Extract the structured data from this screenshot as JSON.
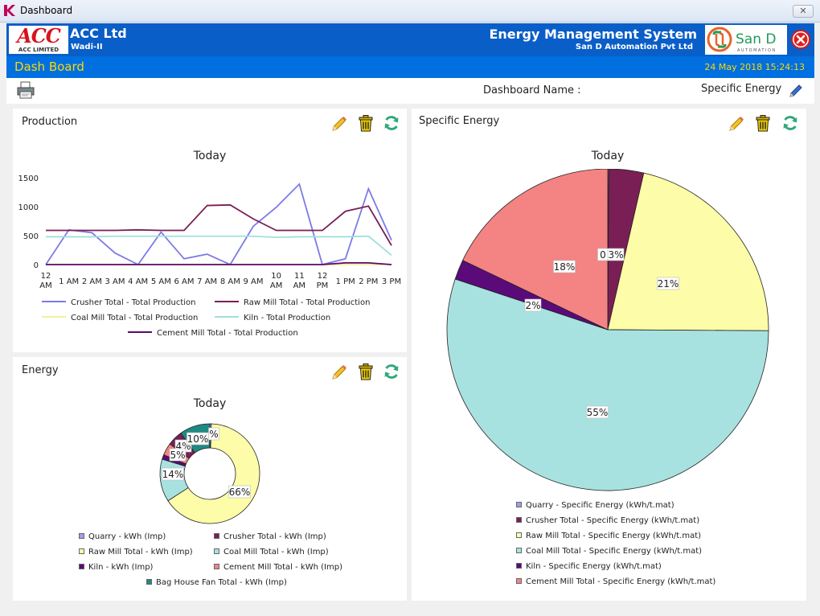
{
  "window": {
    "title": "Dashboard",
    "close_label": "✕"
  },
  "header": {
    "logo_text": "ACC",
    "logo_subtext": "ACC LIMITED",
    "company": "ACC Ltd",
    "site": "Wadi-II",
    "system_name": "Energy Management System",
    "vendor": "San D Automation Pvt Ltd",
    "vendor_logo_text": "San D",
    "vendor_logo_subtext": "AUTOMATION"
  },
  "subheader": {
    "name": "Dash Board",
    "datetime": "24 May 2018 15:24:13"
  },
  "toolbar": {
    "dashboard_label": "Dashboard Name :",
    "dashboard_value": "Specific Energy"
  },
  "colors": {
    "header_bg": "#0a5ec8",
    "subheader_bg": "#0070e0",
    "subheader_text": "#ffd800",
    "refresh": "#2fa87a",
    "trash": "#c8a400"
  },
  "panels": {
    "production": {
      "title": "Production",
      "chart_data": {
        "type": "line",
        "title": "Today",
        "categories": [
          "12 AM",
          "1 AM",
          "2 AM",
          "3 AM",
          "4 AM",
          "5 AM",
          "6 AM",
          "7 AM",
          "8 AM",
          "9 AM",
          "10 AM",
          "11 AM",
          "12 PM",
          "1 PM",
          "2 PM",
          "3 PM"
        ],
        "ylim": [
          0,
          1500
        ],
        "yticks": [
          "0",
          "500",
          "1000",
          "1500"
        ],
        "series": [
          {
            "name": "Crusher Total - Total Production",
            "color": "#7b7be6",
            "values": [
              0,
              600,
              550,
              200,
              0,
              560,
              100,
              180,
              0,
              660,
              990,
              1390,
              0,
              100,
              1310,
              420
            ]
          },
          {
            "name": "Raw Mill Total - Total Production",
            "color": "#7a1f55",
            "values": [
              590,
              590,
              590,
              590,
              600,
              590,
              590,
              1020,
              1030,
              790,
              590,
              590,
              590,
              920,
              1010,
              330
            ]
          },
          {
            "name": "Coal Mill Total - Total Production",
            "color": "#f5ef9a",
            "values": [
              0,
              0,
              0,
              0,
              0,
              0,
              0,
              0,
              0,
              0,
              0,
              0,
              0,
              0,
              0,
              0
            ]
          },
          {
            "name": "Kiln - Total Production",
            "color": "#9fe0dc",
            "values": [
              480,
              480,
              480,
              490,
              490,
              490,
              490,
              490,
              490,
              490,
              470,
              480,
              480,
              480,
              490,
              160
            ]
          },
          {
            "name": "Cement Mill Total - Total Production",
            "color": "#5a0a6a",
            "values": [
              0,
              0,
              0,
              0,
              0,
              0,
              0,
              0,
              0,
              0,
              0,
              0,
              0,
              30,
              30,
              0
            ]
          }
        ]
      }
    },
    "energy": {
      "title": "Energy",
      "chart_data": {
        "type": "pie",
        "title": "Today",
        "donut": true,
        "slices": [
          {
            "name": "Quarry - kWh (Imp)",
            "value": 0.5,
            "color": "#9e9ef0",
            "label": "%"
          },
          {
            "name": "Raw Mill Total - kWh (Imp)",
            "value": 66,
            "color": "#fdfca8",
            "label": "66%"
          },
          {
            "name": "Coal Mill Total - kWh (Imp)",
            "value": 14,
            "color": "#a8e2e0",
            "label": "14%"
          },
          {
            "name": "Kiln - kWh (Imp)",
            "value": 1.5,
            "color": "#5b0a7a",
            "label": ""
          },
          {
            "name": "Cement Mill Total - kWh (Imp)",
            "value": 4,
            "color": "#f48383",
            "label": "4%"
          },
          {
            "name": "Crusher Total - kWh (Imp)",
            "value": 5,
            "color": "#7a1f55",
            "label": "5%"
          },
          {
            "name": "Bag House Fan Total - kWh (Imp)",
            "value": 10,
            "color": "#1f8a82",
            "label": "10%"
          }
        ]
      }
    },
    "specific_energy": {
      "title": "Specific Energy",
      "chart_data": {
        "type": "pie",
        "title": "Today",
        "slices": [
          {
            "name": "Quarry - Specific Energy (kWh/t.mat)",
            "value": 0.1,
            "color": "#9e9ef0",
            "label": "0"
          },
          {
            "name": "Crusher Total - Specific Energy (kWh/t.mat)",
            "value": 3.5,
            "color": "#7a1f55",
            "label": "3%"
          },
          {
            "name": "Raw Mill Total - Specific Energy (kWh/t.mat)",
            "value": 21.5,
            "color": "#fdfca8",
            "label": "21%"
          },
          {
            "name": "Coal Mill Total - Specific Energy (kWh/t.mat)",
            "value": 55,
            "color": "#a8e2e0",
            "label": "55%"
          },
          {
            "name": "Kiln - Specific Energy (kWh/t.mat)",
            "value": 2,
            "color": "#5b0a7a",
            "label": "2%"
          },
          {
            "name": "Cement Mill Total - Specific Energy (kWh/t.mat)",
            "value": 17.9,
            "color": "#f48383",
            "label": "18%"
          }
        ]
      }
    }
  }
}
